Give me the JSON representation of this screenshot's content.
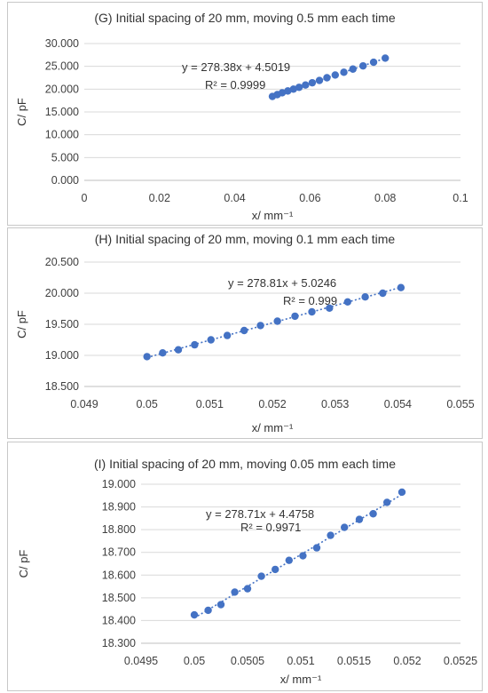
{
  "chart_data": [
    {
      "type": "scatter",
      "title": "(G) Initial spacing of 20 mm, moving 0.5 mm each time",
      "xlabel": "x/ mm⁻¹",
      "ylabel": "C/ pF",
      "xlim": [
        0,
        0.1
      ],
      "ylim": [
        0,
        30
      ],
      "xticks": [
        "0",
        "0.02",
        "0.04",
        "0.06",
        "0.08",
        "0.1"
      ],
      "yticks": [
        "0.000",
        "5.000",
        "10.000",
        "15.000",
        "20.000",
        "25.000",
        "30.000"
      ],
      "equation": "y = 278.38x + 4.5019",
      "r2": "R² = 0.9999",
      "grid": "horizontal",
      "trendline": {
        "slope": 278.38,
        "intercept": 4.5019
      },
      "series": [
        {
          "x": [
            0.05,
            0.0513,
            0.0526,
            0.0541,
            0.0556,
            0.0571,
            0.0588,
            0.0606,
            0.0625,
            0.0645,
            0.0667,
            0.069,
            0.0714,
            0.0741,
            0.0769,
            0.08
          ],
          "y": [
            18.4,
            18.8,
            19.2,
            19.6,
            20.0,
            20.4,
            20.9,
            21.4,
            21.9,
            22.5,
            23.1,
            23.7,
            24.4,
            25.1,
            25.9,
            26.8
          ]
        }
      ]
    },
    {
      "type": "scatter",
      "title": "(H) Initial spacing of 20 mm, moving 0.1 mm each time",
      "xlabel": "x/ mm⁻¹",
      "ylabel": "C/ pF",
      "xlim": [
        0.049,
        0.055
      ],
      "ylim": [
        18.5,
        20.5
      ],
      "xticks": [
        "0.049",
        "0.05",
        "0.051",
        "0.052",
        "0.053",
        "0.054",
        "0.055"
      ],
      "yticks": [
        "18.500",
        "19.000",
        "19.500",
        "20.000",
        "20.500"
      ],
      "equation": "y = 278.81x + 5.0246",
      "r2": "R² = 0.999",
      "grid": "horizontal",
      "trendline": {
        "slope": 278.81,
        "intercept": 5.0246
      },
      "series": [
        {
          "x": [
            0.05,
            0.05025,
            0.0505,
            0.05076,
            0.05102,
            0.05128,
            0.05155,
            0.05181,
            0.05208,
            0.05236,
            0.05263,
            0.05291,
            0.0532,
            0.05348,
            0.05376,
            0.05405
          ],
          "y": [
            18.98,
            19.04,
            19.09,
            19.17,
            19.25,
            19.32,
            19.4,
            19.48,
            19.55,
            19.63,
            19.7,
            19.76,
            19.86,
            19.94,
            20.0,
            20.09
          ]
        }
      ]
    },
    {
      "type": "scatter",
      "title": "(I) Initial spacing of 20 mm, moving 0.05 mm each time",
      "xlabel": "x/ mm⁻¹",
      "ylabel": "C/ pF",
      "xlim": [
        0.0495,
        0.0525
      ],
      "ylim": [
        18.3,
        19.0
      ],
      "xticks": [
        "0.0495",
        "0.05",
        "0.0505",
        "0.051",
        "0.0515",
        "0.052",
        "0.0525"
      ],
      "yticks": [
        "18.300",
        "18.400",
        "18.500",
        "18.600",
        "18.700",
        "18.800",
        "18.900",
        "19.000"
      ],
      "equation": "y = 278.71x + 4.4758",
      "r2": "R² = 0.9971",
      "grid": "horizontal",
      "trendline": {
        "slope": 278.71,
        "intercept": 4.4758
      },
      "series": [
        {
          "x": [
            0.05,
            0.05013,
            0.05025,
            0.05038,
            0.0505,
            0.05063,
            0.05076,
            0.05089,
            0.05102,
            0.05115,
            0.05128,
            0.05141,
            0.05155,
            0.05168,
            0.05181,
            0.05195
          ],
          "y": [
            18.425,
            18.445,
            18.47,
            18.525,
            18.54,
            18.595,
            18.625,
            18.665,
            18.685,
            18.72,
            18.775,
            18.81,
            18.845,
            18.87,
            18.92,
            18.965
          ]
        }
      ]
    }
  ]
}
